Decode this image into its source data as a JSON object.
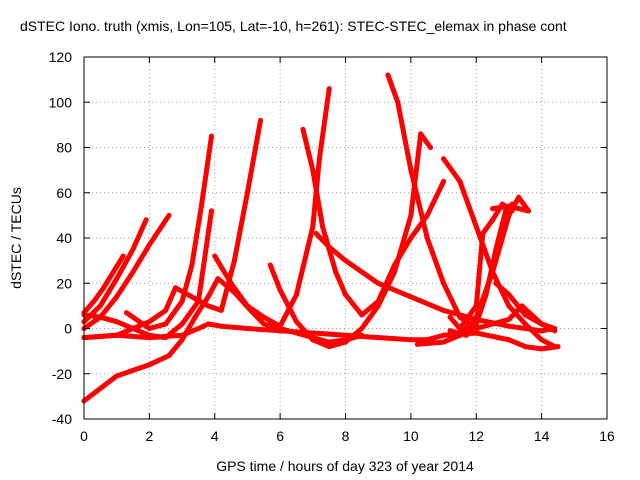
{
  "chart_data": {
    "type": "line",
    "title": "dSTEC Iono. truth (xmis, Lon=105, Lat=-10, h=261): STEC-STEC_elemax in phase cont",
    "xlabel": "GPS time / hours of day 323 of year 2014",
    "ylabel": "dSTEC  / TECUs",
    "xlim": [
      0,
      16
    ],
    "ylim": [
      -40,
      120
    ],
    "xticks": [
      "0",
      "2",
      "4",
      "6",
      "8",
      "10",
      "12",
      "14",
      "16"
    ],
    "yticks": [
      "-40",
      "-20",
      "0",
      "20",
      "40",
      "60",
      "80",
      "100",
      "120"
    ],
    "grid": true,
    "legend": "none",
    "color": "#ff0000",
    "series": [
      {
        "x": [
          0,
          0.3,
          0.6,
          0.9,
          1.2
        ],
        "values": [
          7,
          12,
          18,
          25,
          32
        ]
      },
      {
        "x": [
          0,
          0.5,
          1,
          1.5,
          1.9
        ],
        "values": [
          3,
          10,
          22,
          35,
          48
        ]
      },
      {
        "x": [
          0,
          0.5,
          1,
          1.5,
          2,
          2.6
        ],
        "values": [
          0,
          5,
          14,
          25,
          37,
          50
        ]
      },
      {
        "x": [
          0,
          0.5,
          1,
          1.5,
          2,
          2.5,
          3,
          3.5,
          3.9
        ],
        "values": [
          6,
          5,
          3,
          0,
          -3,
          -4,
          2,
          12,
          52
        ]
      },
      {
        "x": [
          0,
          1,
          2,
          2.6,
          3,
          3.4,
          3.8,
          4.1,
          4.6,
          5.1,
          5.5,
          6,
          6.5,
          7,
          7.5,
          8,
          8.5
        ],
        "values": [
          -32,
          -21,
          -16,
          -12,
          -5,
          5,
          14,
          22,
          16,
          8,
          2,
          0,
          -2,
          -4,
          -6,
          -5,
          -3
        ]
      },
      {
        "x": [
          1.3,
          2,
          2.5,
          3,
          3.3,
          3.6,
          3.9
        ],
        "values": [
          7,
          0,
          2,
          12,
          28,
          55,
          85
        ]
      },
      {
        "x": [
          0,
          1,
          2,
          2.5,
          2.8,
          3.3,
          3.8,
          4.2,
          4.6,
          5,
          5.4
        ],
        "values": [
          -4,
          -3,
          3,
          8,
          18,
          14,
          10,
          8,
          30,
          60,
          92
        ]
      },
      {
        "x": [
          0,
          1,
          2,
          3,
          3.5,
          3.8,
          4.2,
          5,
          6,
          7,
          8,
          9,
          10,
          10.5,
          11,
          12,
          13,
          13.5,
          14,
          14.5
        ],
        "values": [
          -4,
          -3,
          -4,
          -3,
          0,
          2,
          1,
          0,
          -1,
          -2,
          -3,
          -4,
          -5,
          -5,
          -3,
          -2,
          -5,
          -8,
          -9,
          -8
        ]
      },
      {
        "x": [
          4,
          4.5,
          5,
          5.5,
          6,
          6.5,
          7,
          7.2,
          7.5
        ],
        "values": [
          32,
          20,
          10,
          5,
          1,
          15,
          45,
          75,
          106
        ]
      },
      {
        "x": [
          6.7,
          7,
          7.3,
          7.7,
          8,
          8.5,
          9,
          9.5,
          10,
          10.5,
          11
        ],
        "values": [
          88,
          70,
          45,
          25,
          15,
          6,
          12,
          28,
          40,
          50,
          65
        ]
      },
      {
        "x": [
          5.7,
          6,
          6.5,
          7,
          7.5,
          8,
          8.5,
          9,
          9.5,
          10,
          10.3,
          10.6
        ],
        "values": [
          28,
          17,
          3,
          -5,
          -8,
          -6,
          0,
          10,
          25,
          50,
          86,
          80
        ]
      },
      {
        "x": [
          7.1,
          7.5,
          8,
          9,
          10,
          11,
          12,
          13,
          14,
          14.4
        ],
        "values": [
          42,
          36,
          30,
          20,
          14,
          8,
          4,
          1,
          -1,
          0
        ]
      },
      {
        "x": [
          9.3,
          9.6,
          10,
          10.5,
          11,
          11.5,
          12,
          12.5,
          13,
          13.4,
          14,
          14.4
        ],
        "values": [
          112,
          100,
          70,
          40,
          20,
          5,
          0,
          2,
          4,
          10,
          2,
          -1
        ]
      },
      {
        "x": [
          11,
          11.5,
          12,
          12.5,
          13,
          13.5,
          14,
          14.4
        ],
        "values": [
          75,
          65,
          45,
          25,
          10,
          2,
          -5,
          -8
        ]
      },
      {
        "x": [
          10.2,
          11,
          11.5,
          12,
          12.5,
          13,
          13.3,
          13.6
        ],
        "values": [
          -7,
          -6,
          -3,
          5,
          25,
          50,
          58,
          52
        ]
      },
      {
        "x": [
          11.2,
          11.7,
          12,
          12.3,
          12.6,
          12.9,
          13.1
        ],
        "values": [
          -1,
          -3,
          2,
          15,
          35,
          52,
          55
        ]
      },
      {
        "x": [
          11.2,
          11.5,
          12,
          12.2,
          12.5,
          12.8,
          13.1
        ],
        "values": [
          5,
          0,
          10,
          42,
          48,
          55,
          52
        ]
      },
      {
        "x": [
          12.5,
          13,
          13.3,
          13.6
        ],
        "values": [
          53,
          54,
          53,
          52
        ]
      },
      {
        "x": [
          12.6,
          13,
          13.5,
          14,
          14.4
        ],
        "values": [
          20,
          15,
          6,
          2,
          0
        ]
      }
    ]
  }
}
